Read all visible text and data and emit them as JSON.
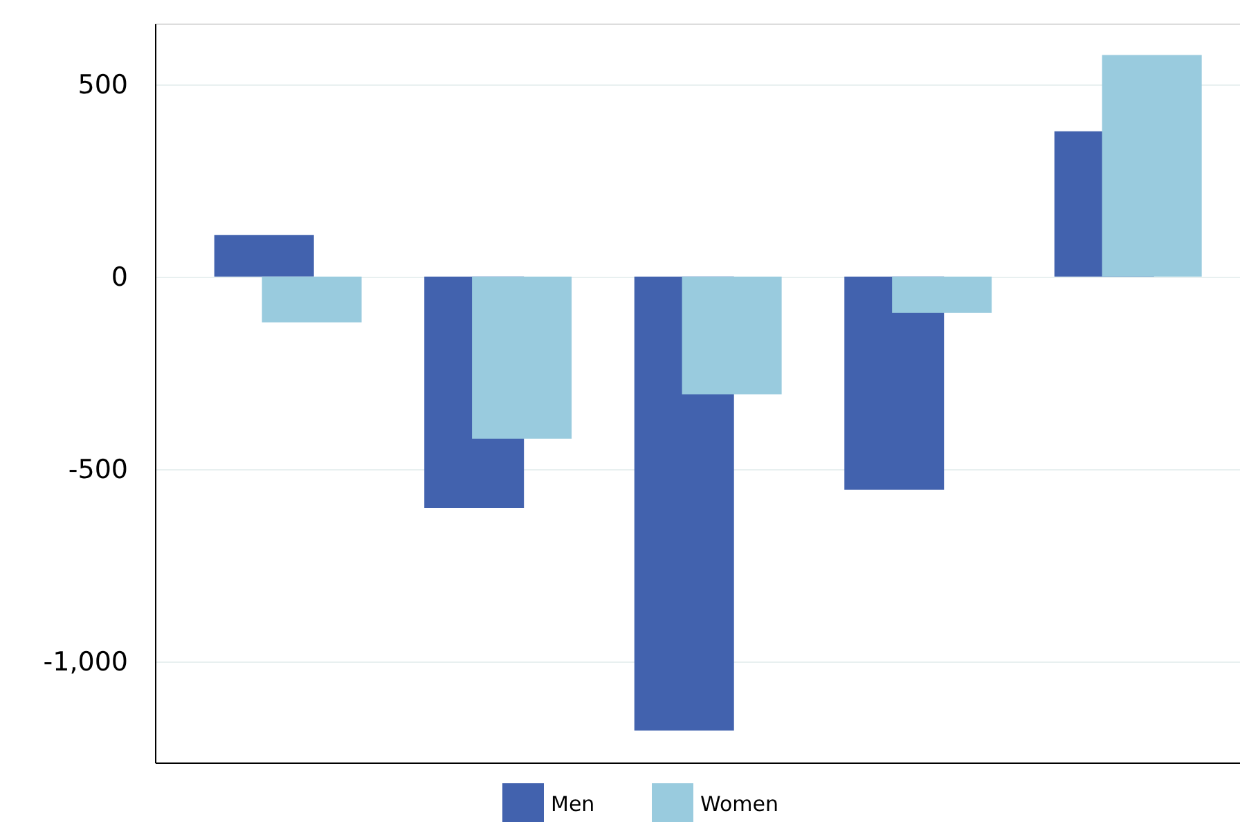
{
  "chart_data": {
    "type": "bar",
    "categories": [
      null,
      null,
      null,
      null,
      null
    ],
    "series": [
      {
        "name": "Men",
        "color": "#4262ae",
        "values": [
          108,
          -601,
          -1180,
          -554,
          378
        ]
      },
      {
        "name": "Women",
        "color": "#99cbde",
        "values": [
          -119,
          -421,
          -306,
          -94,
          576
        ]
      }
    ],
    "ylim": [
      -1263,
      658
    ],
    "yticks": [
      {
        "value": -1000,
        "label": "-1,000"
      },
      {
        "value": -500,
        "label": "-500"
      },
      {
        "value": 0,
        "label": "0"
      },
      {
        "value": 500,
        "label": "500"
      }
    ],
    "grid": "y",
    "legend": "bottom"
  }
}
